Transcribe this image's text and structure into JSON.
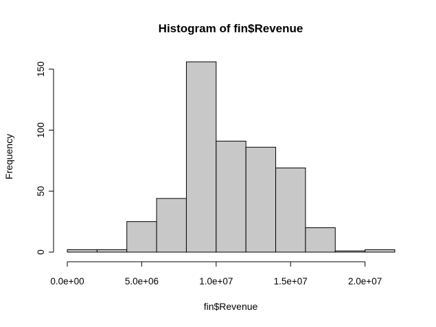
{
  "chart_data": {
    "type": "bar",
    "title": "Histogram of fin$Revenue",
    "xlabel": "fin$Revenue",
    "ylabel": "Frequency",
    "bin_edges": [
      0,
      2000000,
      4000000,
      6000000,
      8000000,
      10000000,
      12000000,
      14000000,
      16000000,
      18000000,
      20000000,
      22000000
    ],
    "values": [
      2,
      2,
      25,
      44,
      156,
      91,
      86,
      69,
      20,
      1,
      2
    ],
    "xlim": [
      0,
      22000000
    ],
    "ylim": [
      0,
      156
    ],
    "x_ticks": [
      {
        "value": 0,
        "label": "0.0e+00"
      },
      {
        "value": 5000000,
        "label": "5.0e+06"
      },
      {
        "value": 10000000,
        "label": "1.0e+07"
      },
      {
        "value": 15000000,
        "label": "1.5e+07"
      },
      {
        "value": 20000000,
        "label": "2.0e+07"
      }
    ],
    "y_ticks": [
      {
        "value": 0,
        "label": "0"
      },
      {
        "value": 50,
        "label": "50"
      },
      {
        "value": 100,
        "label": "100"
      },
      {
        "value": 150,
        "label": "150"
      }
    ],
    "bar_color": "#c8c8c8",
    "edge_color": "#000000",
    "grid": false,
    "legend": "none"
  }
}
